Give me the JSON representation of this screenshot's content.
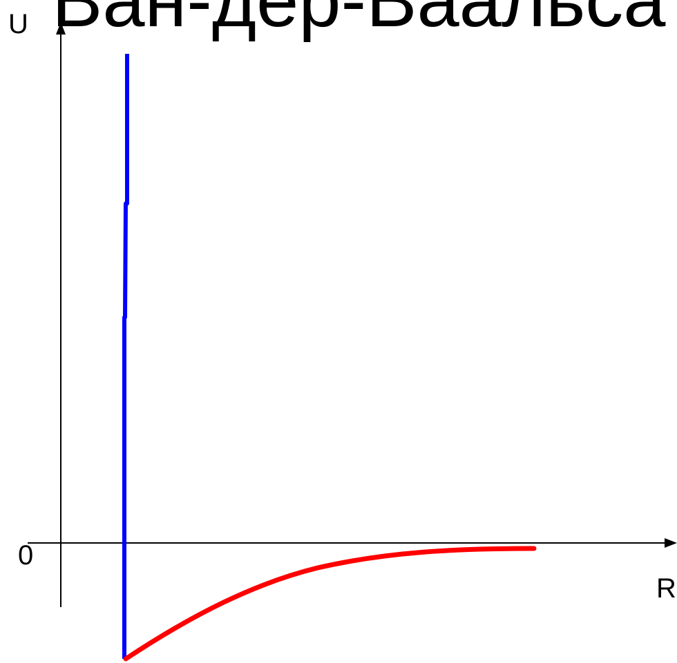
{
  "title": "Ван-дер-Ваальса",
  "axes": {
    "y_label": "U",
    "x_label": "R",
    "origin_label": "0"
  },
  "colors": {
    "repulsive_wall": "#0000ff",
    "attractive_well": "#ff0000",
    "axes": "#000000"
  }
}
